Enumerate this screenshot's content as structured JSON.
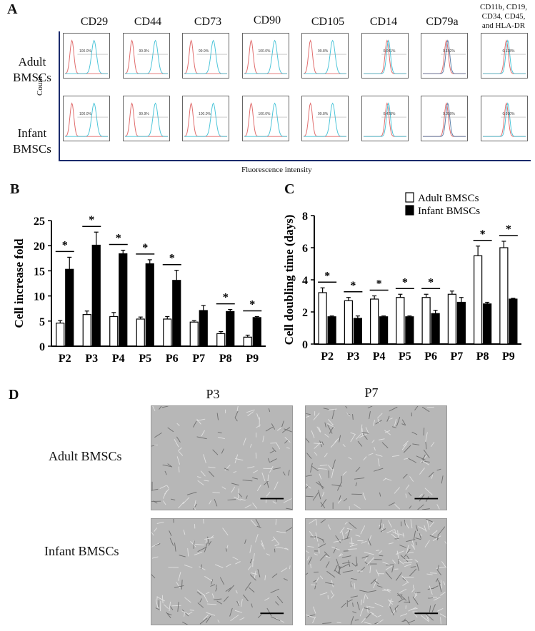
{
  "panel_a": {
    "letter": "A",
    "markers": [
      "CD29",
      "CD44",
      "CD73",
      "CD90",
      "CD105",
      "CD14",
      "CD79a"
    ],
    "last_marker_lines": [
      "CD11b, CD19,",
      "CD34, CD45,",
      "and HLA-DR"
    ],
    "rows": [
      {
        "label_lines": [
          "Adult",
          "BMSCs"
        ],
        "percents": [
          "100.0%",
          "99.9%",
          "99.9%",
          "100.0%",
          "99.8%",
          "0.041%",
          "0.152%",
          "0.128%"
        ]
      },
      {
        "label_lines": [
          "Infant",
          "BMSCs"
        ],
        "percents": [
          "100.0%",
          "99.9%",
          "100.0%",
          "100.0%",
          "99.8%",
          "0.428%",
          "0.000%",
          "0.010%"
        ]
      }
    ],
    "ylabel": "Count",
    "xlabel": "Fluorescence intensity",
    "colors": {
      "isotype": "#e06a6a",
      "stained": "#49c4d8",
      "overlap": "#5a7fa8",
      "frame": "#1a2a6c"
    }
  },
  "panel_b": {
    "letter": "B"
  },
  "panel_c": {
    "letter": "C"
  },
  "chart_data": [
    {
      "type": "bar",
      "panel": "B",
      "categories": [
        "P2",
        "P3",
        "P4",
        "P5",
        "P6",
        "P7",
        "P8",
        "P9"
      ],
      "series": [
        {
          "name": "Adult BMSCs",
          "values": [
            4.6,
            6.3,
            5.9,
            5.4,
            5.4,
            4.8,
            2.5,
            1.8
          ],
          "errors": [
            0.5,
            0.7,
            0.8,
            0.4,
            0.5,
            0.3,
            0.4,
            0.4
          ],
          "fill": "#ffffff"
        },
        {
          "name": "Infant BMSCs",
          "values": [
            15.3,
            20.1,
            18.4,
            16.4,
            13.1,
            7.1,
            6.9,
            5.7
          ],
          "errors": [
            2.4,
            2.6,
            0.7,
            0.8,
            2.0,
            1.0,
            0.4,
            0.2
          ],
          "fill": "#000000"
        }
      ],
      "significance": [
        "*",
        "*",
        "*",
        "*",
        "*",
        "",
        "*",
        "*"
      ],
      "ylabel": "Cell increase fold",
      "ylim": [
        0,
        25
      ],
      "yticks": [
        0,
        5,
        10,
        15,
        20,
        25
      ]
    },
    {
      "type": "bar",
      "panel": "C",
      "categories": [
        "P2",
        "P3",
        "P4",
        "P5",
        "P6",
        "P7",
        "P8",
        "P9"
      ],
      "series": [
        {
          "name": "Adult BMSCs",
          "values": [
            3.2,
            2.7,
            2.8,
            2.9,
            2.9,
            3.1,
            5.5,
            6.0
          ],
          "errors": [
            0.3,
            0.2,
            0.2,
            0.2,
            0.2,
            0.2,
            0.6,
            0.4
          ],
          "fill": "#ffffff"
        },
        {
          "name": "Infant BMSCs",
          "values": [
            1.7,
            1.6,
            1.7,
            1.7,
            1.9,
            2.6,
            2.5,
            2.8
          ],
          "errors": [
            0.05,
            0.15,
            0.05,
            0.05,
            0.2,
            0.3,
            0.1,
            0.05
          ],
          "fill": "#000000"
        }
      ],
      "significance": [
        "*",
        "*",
        "*",
        "*",
        "*",
        "",
        "*",
        "*"
      ],
      "ylabel": "Cell doubling time (days)",
      "ylim": [
        0,
        8
      ],
      "yticks": [
        0,
        2,
        4,
        6,
        8
      ],
      "legend": {
        "position": "top-right",
        "labels": [
          "Adult BMSCs",
          "Infant BMSCs"
        ]
      }
    }
  ],
  "panel_d": {
    "letter": "D",
    "columns": [
      "P3",
      "P7"
    ],
    "rows": [
      "Adult BMSCs",
      "Infant BMSCs"
    ]
  }
}
